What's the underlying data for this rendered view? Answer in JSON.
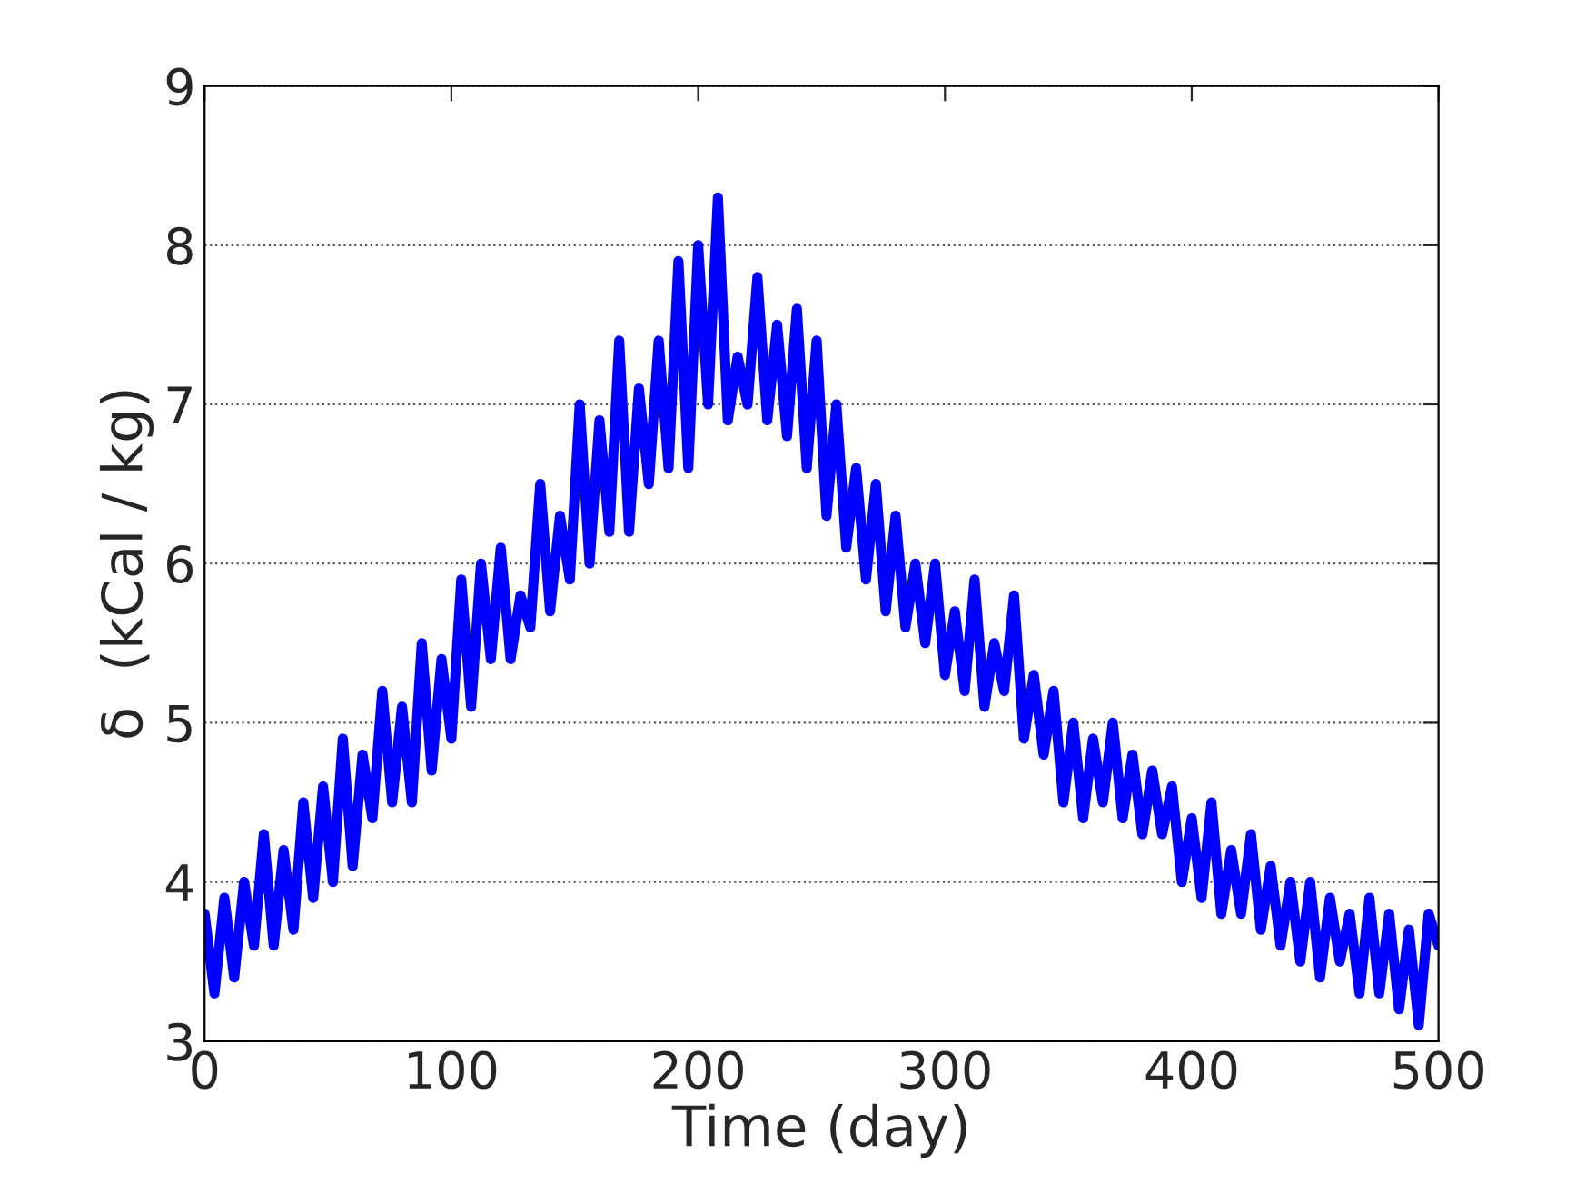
{
  "chart_data": {
    "type": "line",
    "xlabel": "Time (day)",
    "ylabel": "δ  (kCal / kg)",
    "x": [
      0,
      4,
      8,
      12,
      16,
      20,
      24,
      28,
      32,
      36,
      40,
      44,
      48,
      52,
      56,
      60,
      64,
      68,
      72,
      76,
      80,
      84,
      88,
      92,
      96,
      100,
      104,
      108,
      112,
      116,
      120,
      124,
      128,
      132,
      136,
      140,
      144,
      148,
      152,
      156,
      160,
      164,
      168,
      172,
      176,
      180,
      184,
      188,
      192,
      196,
      200,
      204,
      208,
      212,
      216,
      220,
      224,
      228,
      232,
      236,
      240,
      244,
      248,
      252,
      256,
      260,
      264,
      268,
      272,
      276,
      280,
      284,
      288,
      292,
      296,
      300,
      304,
      308,
      312,
      316,
      320,
      324,
      328,
      332,
      336,
      340,
      344,
      348,
      352,
      356,
      360,
      364,
      368,
      372,
      376,
      380,
      384,
      388,
      392,
      396,
      400,
      404,
      408,
      412,
      416,
      420,
      424,
      428,
      432,
      436,
      440,
      444,
      448,
      452,
      456,
      460,
      464,
      468,
      472,
      476,
      480,
      484,
      488,
      492,
      496,
      500
    ],
    "series": [
      {
        "color": "#0000ff",
        "values": [
          3.8,
          3.3,
          3.9,
          3.4,
          4.0,
          3.6,
          4.3,
          3.6,
          4.2,
          3.7,
          4.5,
          3.9,
          4.6,
          4.0,
          4.9,
          4.1,
          4.8,
          4.4,
          5.2,
          4.5,
          5.1,
          4.5,
          5.5,
          4.7,
          5.4,
          4.9,
          5.9,
          5.1,
          6.0,
          5.4,
          6.1,
          5.4,
          5.8,
          5.6,
          6.5,
          5.7,
          6.3,
          5.9,
          7.0,
          6.0,
          6.9,
          6.2,
          7.4,
          6.2,
          7.1,
          6.5,
          7.4,
          6.6,
          7.9,
          6.6,
          8.0,
          7.0,
          8.3,
          6.9,
          7.3,
          7.0,
          7.8,
          6.9,
          7.5,
          6.8,
          7.6,
          6.6,
          7.4,
          6.3,
          7.0,
          6.1,
          6.6,
          5.9,
          6.5,
          5.7,
          6.3,
          5.6,
          6.0,
          5.5,
          6.0,
          5.3,
          5.7,
          5.2,
          5.9,
          5.1,
          5.5,
          5.2,
          5.8,
          4.9,
          5.3,
          4.8,
          5.2,
          4.5,
          5.0,
          4.4,
          4.9,
          4.5,
          5.0,
          4.4,
          4.8,
          4.3,
          4.7,
          4.3,
          4.6,
          4.0,
          4.4,
          3.9,
          4.5,
          3.8,
          4.2,
          3.8,
          4.3,
          3.7,
          4.1,
          3.6,
          4.0,
          3.5,
          4.0,
          3.4,
          3.9,
          3.5,
          3.8,
          3.3,
          3.9,
          3.3,
          3.8,
          3.2,
          3.7,
          3.1,
          3.8,
          3.6
        ]
      }
    ],
    "xlim": [
      0,
      500
    ],
    "xticks": [
      0,
      100,
      200,
      300,
      400,
      500
    ],
    "ylim": [
      3,
      9
    ],
    "yticks": [
      3,
      4,
      5,
      6,
      7,
      8,
      9
    ],
    "grid": "y",
    "line_style": "solid",
    "marker": "none"
  }
}
